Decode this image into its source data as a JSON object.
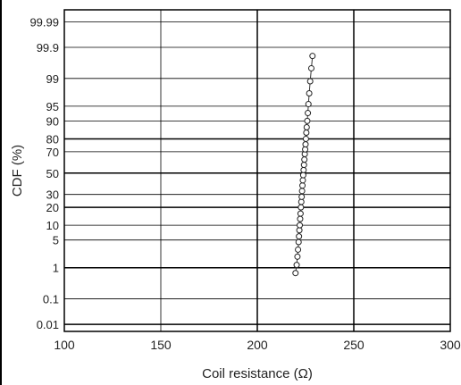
{
  "chart_data": {
    "type": "scatter",
    "title": "",
    "xlabel": "Coil resistance (Ω)",
    "ylabel": "CDF (%)",
    "xlim": [
      100,
      300
    ],
    "x_ticks": [
      100,
      150,
      200,
      250,
      300
    ],
    "x_tick_labels": [
      "100",
      "150",
      "200",
      "250",
      "300"
    ],
    "y_scale": "normal-probability",
    "ylim": [
      0.005,
      99.997
    ],
    "y_ticks": [
      0.01,
      0.1,
      1,
      5,
      10,
      20,
      30,
      50,
      70,
      80,
      90,
      95,
      99,
      99.9,
      99.99
    ],
    "y_tick_labels": [
      "0.01",
      "0.1",
      "1",
      "5",
      "10",
      "20",
      "30",
      "50",
      "70",
      "80",
      "90",
      "95",
      "99",
      "99.9",
      "99.99"
    ],
    "grid": true,
    "series": [
      {
        "marker": "open-circle",
        "line": true,
        "x": [
          219.8,
          220.4,
          220.8,
          221.1,
          221.4,
          221.6,
          221.8,
          222.0,
          222.2,
          222.4,
          222.6,
          222.8,
          223.0,
          223.2,
          223.4,
          223.6,
          223.8,
          224.0,
          224.2,
          224.4,
          224.6,
          224.8,
          225.0,
          225.2,
          225.4,
          225.6,
          225.9,
          226.2,
          226.5,
          226.9,
          227.4,
          228.0,
          228.6
        ],
        "y": [
          0.7,
          1.2,
          2,
          3,
          4.5,
          6,
          8,
          10,
          13,
          16,
          20,
          24,
          28,
          33,
          38,
          43,
          48,
          53,
          58,
          63,
          68,
          72,
          76,
          80,
          84,
          87,
          90,
          93,
          95.5,
          97.5,
          98.8,
          99.5,
          99.8
        ]
      }
    ]
  }
}
